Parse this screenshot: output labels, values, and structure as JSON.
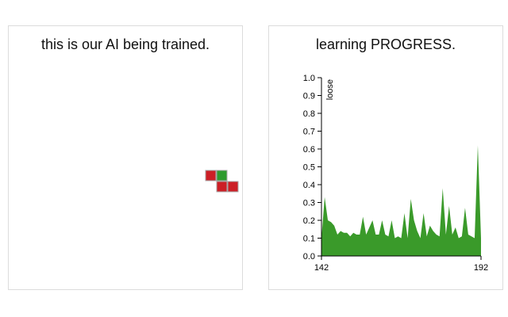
{
  "game_panel": {
    "title": "this is our AI being trained.",
    "colors": {
      "agent": "#2e9b2e",
      "enemy": "#cc1f26",
      "cell_border": "#a8a8a8"
    },
    "grid": {
      "cells": [
        {
          "role": "enemy",
          "col": 0,
          "row": 0
        },
        {
          "role": "agent",
          "col": 1,
          "row": 0
        },
        {
          "role": "enemy",
          "col": 1,
          "row": 1
        },
        {
          "role": "enemy",
          "col": 2,
          "row": 1
        }
      ]
    }
  },
  "chart_panel": {
    "title": "learning PROGRESS."
  },
  "chart_data": {
    "type": "area",
    "title": "learning PROGRESS.",
    "xlabel": "",
    "ylabel": "loose",
    "xlim": [
      142,
      192
    ],
    "ylim": [
      0,
      1.0
    ],
    "x_ticks": [
      "142",
      "192"
    ],
    "y_ticks": [
      "0.0",
      "0.1",
      "0.2",
      "0.3",
      "0.4",
      "0.5",
      "0.6",
      "0.7",
      "0.8",
      "0.9",
      "1.0"
    ],
    "fill_color": "#3a9a2a",
    "x": [
      142,
      143,
      144,
      145,
      146,
      147,
      148,
      149,
      150,
      151,
      152,
      153,
      154,
      155,
      156,
      157,
      158,
      159,
      160,
      161,
      162,
      163,
      164,
      165,
      166,
      167,
      168,
      169,
      170,
      171,
      172,
      173,
      174,
      175,
      176,
      177,
      178,
      179,
      180,
      181,
      182,
      183,
      184,
      185,
      186,
      187,
      188,
      189,
      190,
      191,
      192
    ],
    "values": [
      0.1,
      0.33,
      0.2,
      0.19,
      0.17,
      0.12,
      0.14,
      0.13,
      0.13,
      0.11,
      0.13,
      0.12,
      0.12,
      0.22,
      0.12,
      0.16,
      0.2,
      0.12,
      0.12,
      0.2,
      0.12,
      0.11,
      0.2,
      0.1,
      0.11,
      0.1,
      0.24,
      0.1,
      0.32,
      0.2,
      0.14,
      0.1,
      0.24,
      0.11,
      0.17,
      0.14,
      0.12,
      0.11,
      0.38,
      0.12,
      0.28,
      0.12,
      0.16,
      0.1,
      0.11,
      0.27,
      0.12,
      0.11,
      0.1,
      0.62,
      0.1
    ]
  }
}
